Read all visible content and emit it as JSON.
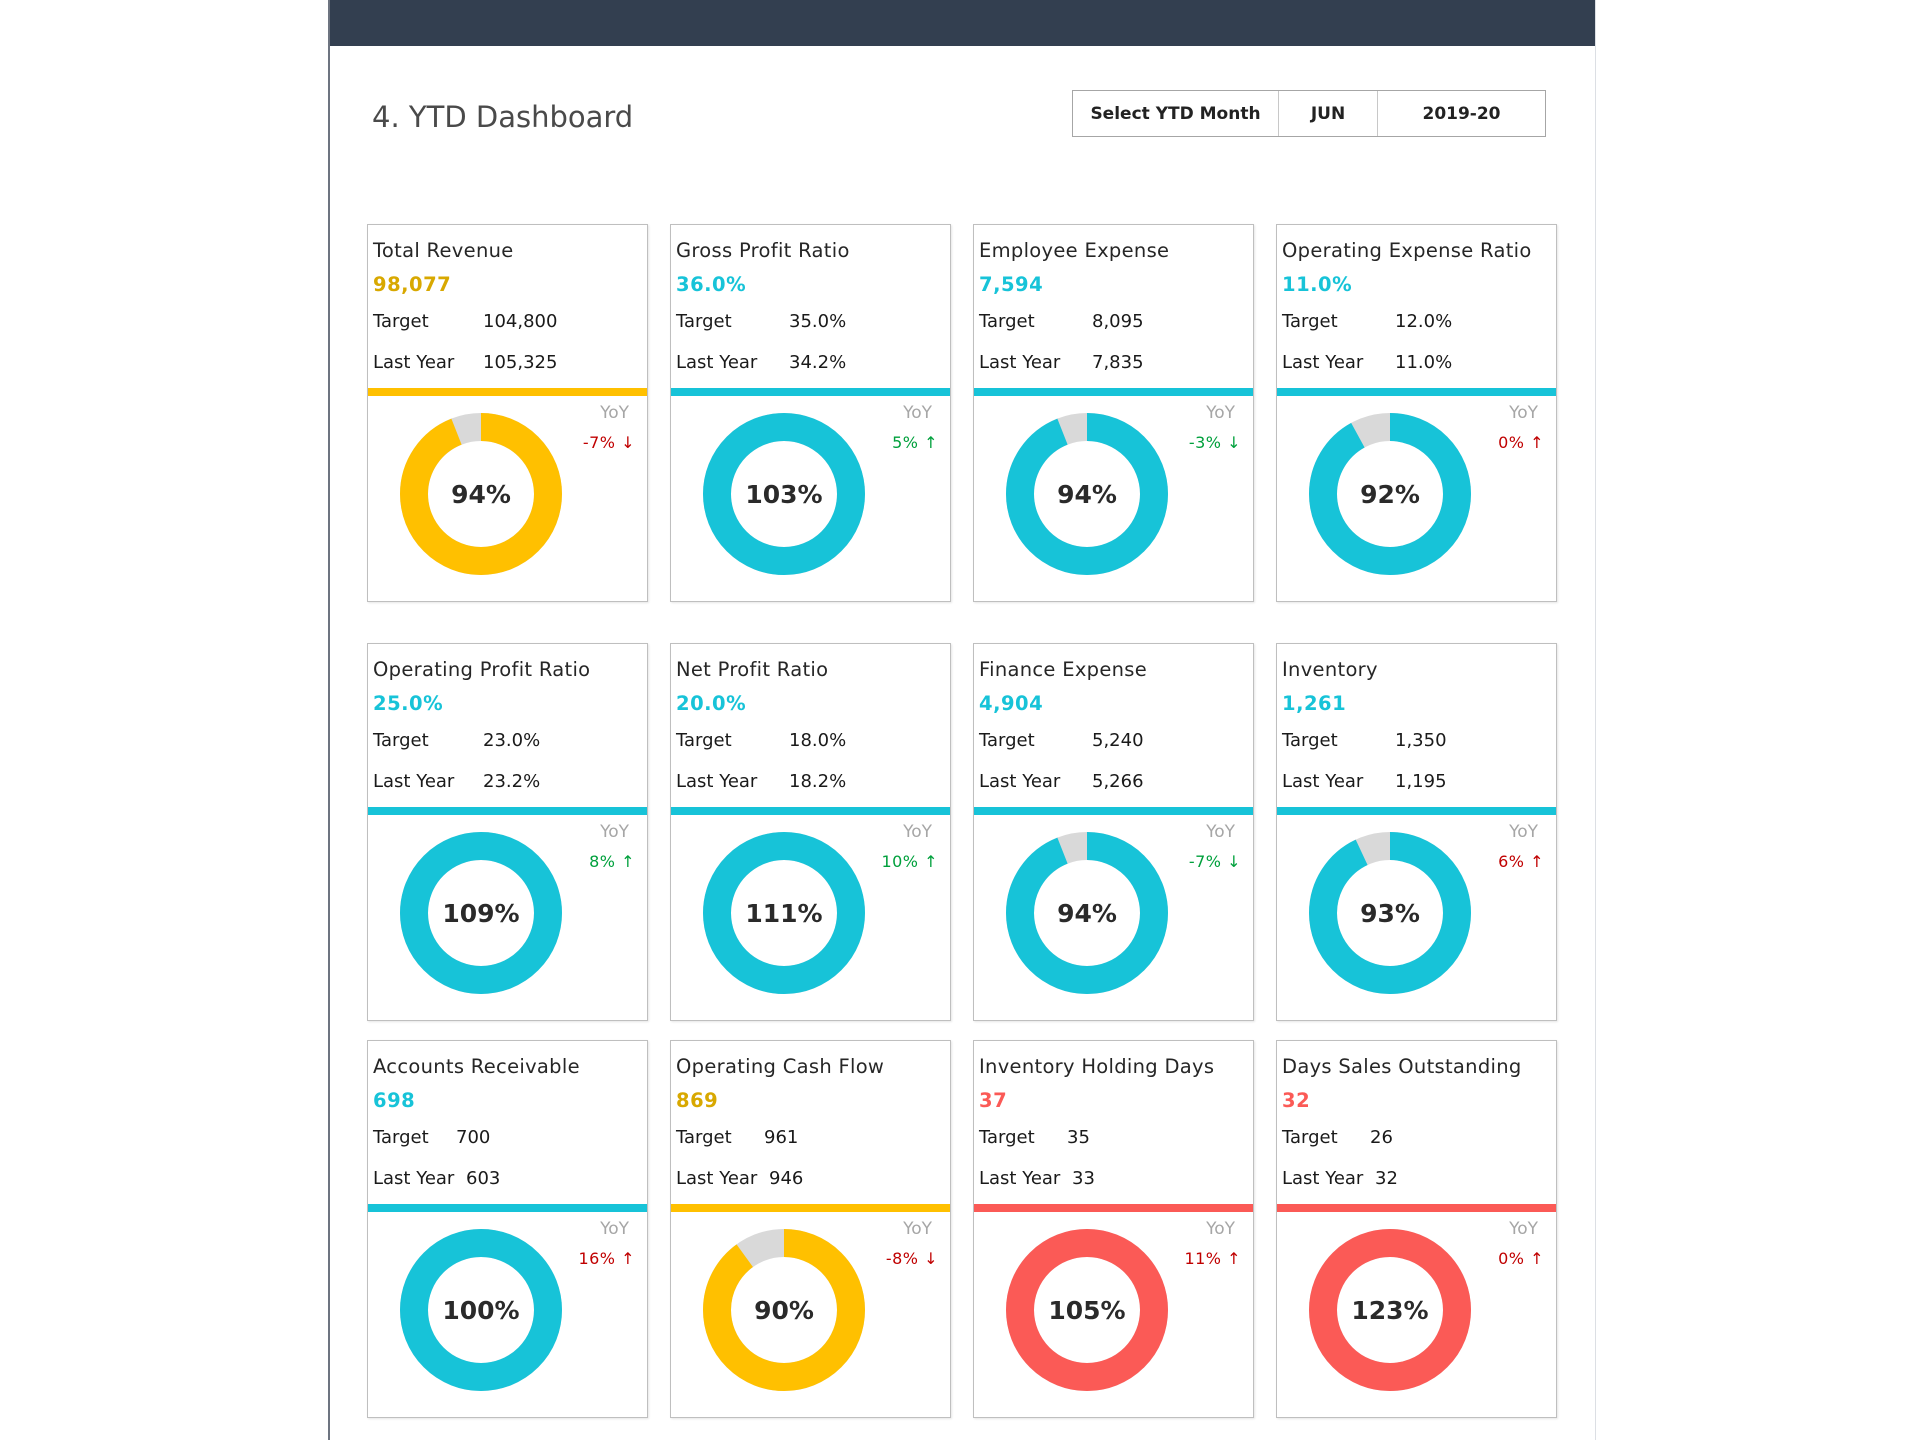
{
  "dashboard": {
    "title": "4. YTD Dashboard",
    "selector": {
      "label": "Select YTD Month",
      "month": "JUN",
      "year": "2019-20"
    }
  },
  "colors": {
    "header_bar": "#333f50",
    "gold": "#ffc000",
    "teal": "#17c3d8",
    "coral": "#fb5a56",
    "remainder_gray": "#d9d9d9",
    "positive_green": "#00a03c",
    "negative_red": "#c00000",
    "value_gold": "#d8a800"
  },
  "row_labels": {
    "target": "Target",
    "last_year": "Last Year",
    "yoy": "YoY"
  },
  "cards": [
    {
      "name": "Total Revenue",
      "value": "98,077",
      "target": "104,800",
      "last_year": "105,325",
      "pct": 94,
      "pct_label": "94%",
      "yoy": "-7% ↓",
      "color": "gold",
      "yoy_color": "negative_red"
    },
    {
      "name": "Gross Profit Ratio",
      "value": "36.0%",
      "target": "35.0%",
      "last_year": "34.2%",
      "pct": 103,
      "pct_label": "103%",
      "yoy": "5% ↑",
      "color": "teal",
      "yoy_color": "positive_green"
    },
    {
      "name": "Employee Expense",
      "value": "7,594",
      "target": "8,095",
      "last_year": "7,835",
      "pct": 94,
      "pct_label": "94%",
      "yoy": "-3% ↓",
      "color": "teal",
      "yoy_color": "positive_green"
    },
    {
      "name": "Operating Expense Ratio",
      "value": "11.0%",
      "target": "12.0%",
      "last_year": "11.0%",
      "pct": 92,
      "pct_label": "92%",
      "yoy": "0% ↑",
      "color": "teal",
      "yoy_color": "negative_red"
    },
    {
      "name": "Operating Profit Ratio",
      "value": "25.0%",
      "target": "23.0%",
      "last_year": "23.2%",
      "pct": 109,
      "pct_label": "109%",
      "yoy": "8% ↑",
      "color": "teal",
      "yoy_color": "positive_green"
    },
    {
      "name": "Net Profit Ratio",
      "value": "20.0%",
      "target": "18.0%",
      "last_year": "18.2%",
      "pct": 111,
      "pct_label": "111%",
      "yoy": "10% ↑",
      "color": "teal",
      "yoy_color": "positive_green"
    },
    {
      "name": "Finance Expense",
      "value": "4,904",
      "target": "5,240",
      "last_year": "5,266",
      "pct": 94,
      "pct_label": "94%",
      "yoy": "-7% ↓",
      "color": "teal",
      "yoy_color": "positive_green"
    },
    {
      "name": "Inventory",
      "value": "1,261",
      "target": "1,350",
      "last_year": "1,195",
      "pct": 93,
      "pct_label": "93%",
      "yoy": "6% ↑",
      "color": "teal",
      "yoy_color": "negative_red"
    },
    {
      "name": "Accounts Receivable",
      "value": "698",
      "target": "700",
      "last_year": "603",
      "pct": 100,
      "pct_label": "100%",
      "yoy": "16% ↑",
      "color": "teal",
      "yoy_color": "negative_red"
    },
    {
      "name": "Operating Cash Flow",
      "value": "869",
      "target": "961",
      "last_year": "946",
      "pct": 90,
      "pct_label": "90%",
      "yoy": "-8% ↓",
      "color": "gold",
      "yoy_color": "negative_red"
    },
    {
      "name": "Inventory Holding Days",
      "value": "37",
      "target": "35",
      "last_year": "33",
      "pct": 105,
      "pct_label": "105%",
      "yoy": "11% ↑",
      "color": "coral",
      "yoy_color": "negative_red"
    },
    {
      "name": "Days Sales Outstanding",
      "value": "32",
      "target": "26",
      "last_year": "32",
      "pct": 123,
      "pct_label": "123%",
      "yoy": "0% ↑",
      "color": "coral",
      "yoy_color": "negative_red"
    }
  ]
}
